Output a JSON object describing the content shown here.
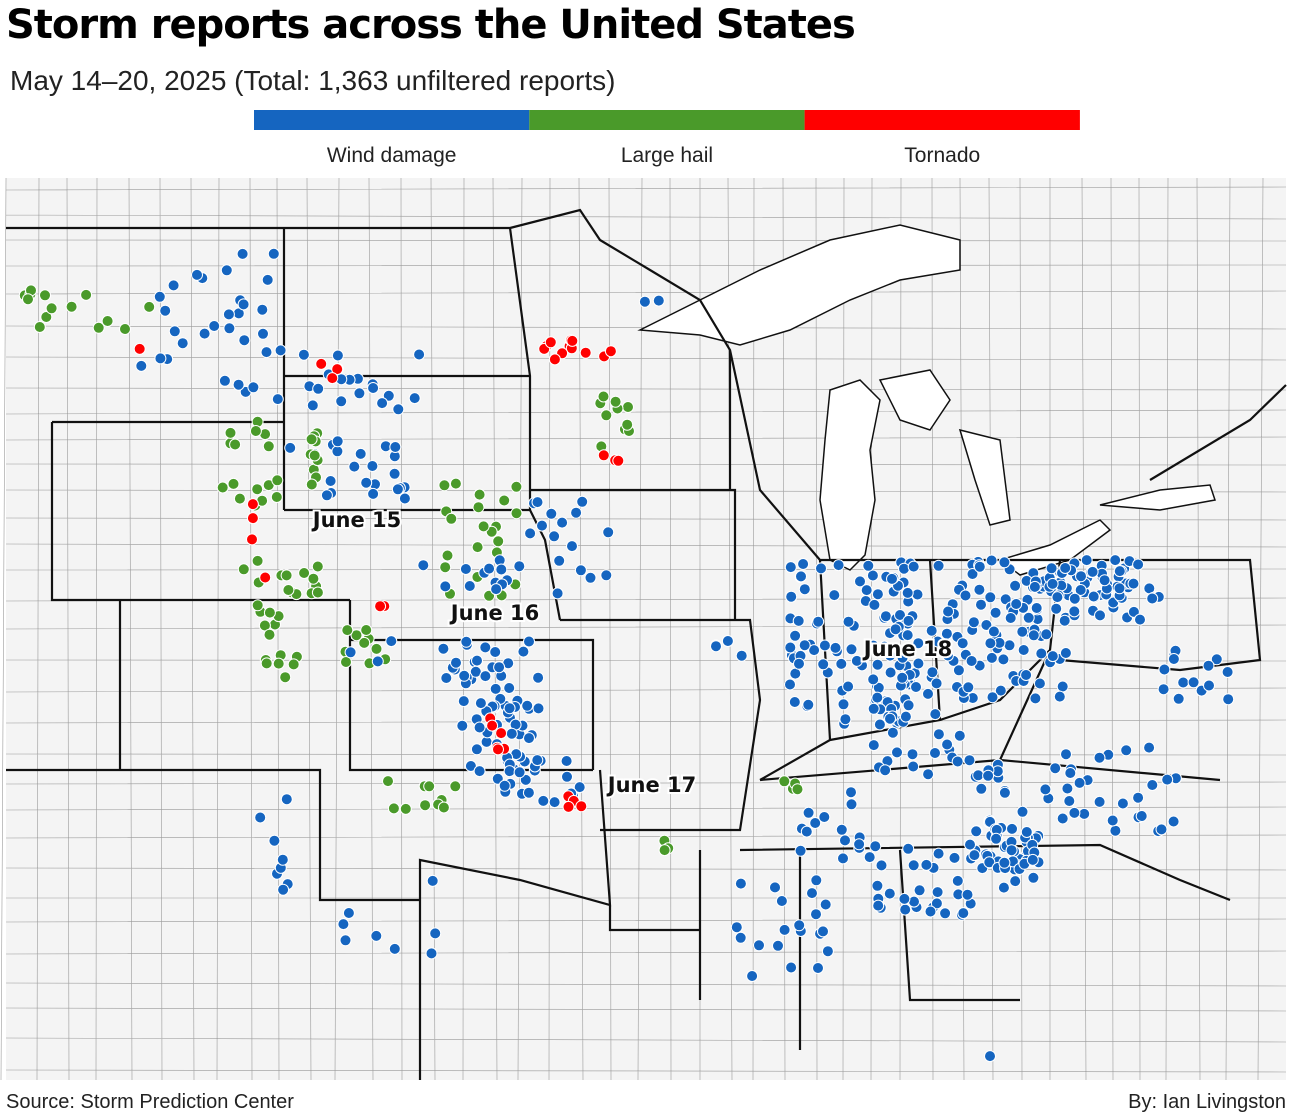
{
  "header": {
    "title": "Storm reports across the United States",
    "subtitle": "May 14–20, 2025 (Total: 1,363 unfiltered reports)"
  },
  "legend": [
    {
      "label": "Wind damage",
      "color": "#1565c0"
    },
    {
      "label": "Large hail",
      "color": "#4a9a2a"
    },
    {
      "label": "Tornado",
      "color": "#ff0000"
    }
  ],
  "map": {
    "labels": [
      "June 15",
      "June 16",
      "June 17",
      "June 18"
    ]
  },
  "footer": {
    "source": "Source: Storm Prediction Center",
    "byline": "By: Ian Livingston"
  }
}
